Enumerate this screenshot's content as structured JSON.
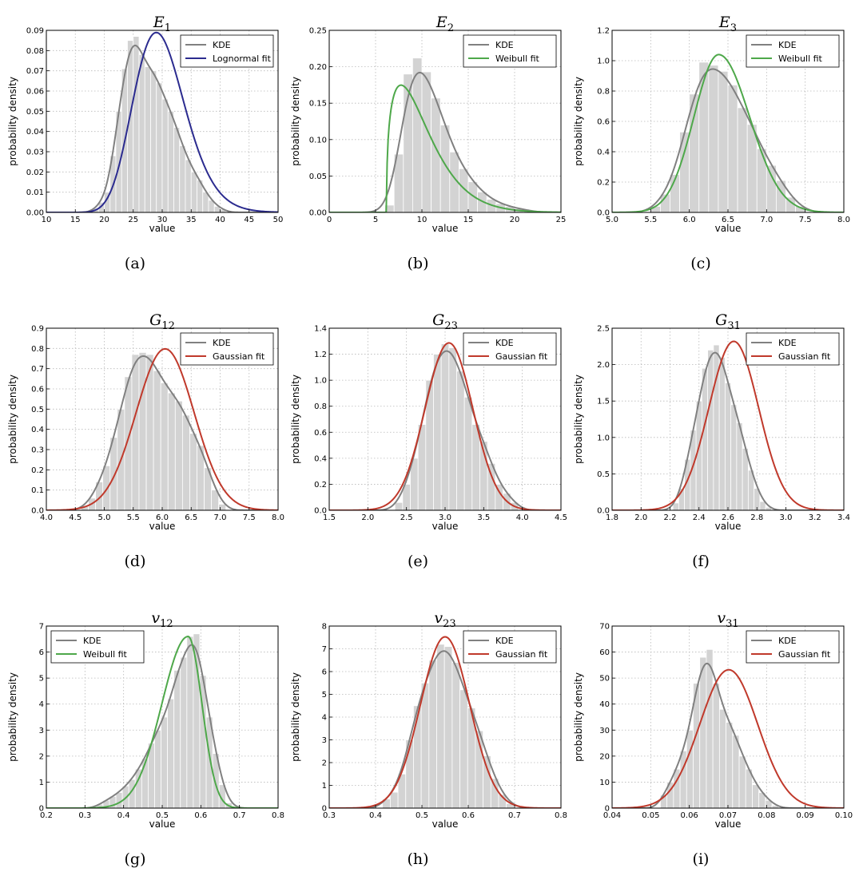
{
  "figure": {
    "colors": {
      "hist_fill": "#d3d3d3",
      "hist_edge": "#ffffff",
      "kde": "#808080",
      "lognormal": "#2b2b8f",
      "weibull": "#4ea84a",
      "gaussian": "#c0392b",
      "grid": "#b8b8b8"
    }
  },
  "chart_data": [
    {
      "id": "a",
      "caption": "(a)",
      "title_base": "E",
      "title_sub": "1",
      "type": "histogram+line",
      "xlabel": "value",
      "ylabel": "probability density",
      "xlim": [
        10,
        50
      ],
      "ylim": [
        0,
        0.09
      ],
      "xticks": [
        10,
        15,
        20,
        25,
        30,
        35,
        40,
        45,
        50
      ],
      "yticks": [
        0.0,
        0.01,
        0.02,
        0.03,
        0.04,
        0.05,
        0.06,
        0.07,
        0.08,
        0.09
      ],
      "xtick_labels": [
        "10",
        "15",
        "20",
        "25",
        "30",
        "35",
        "40",
        "45",
        "50"
      ],
      "ytick_labels": [
        "0.00",
        "0.01",
        "0.02",
        "0.03",
        "0.04",
        "0.05",
        "0.06",
        "0.07",
        "0.08",
        "0.09"
      ],
      "legend": [
        {
          "label": "KDE",
          "color": "kde"
        },
        {
          "label": "Lognormal fit",
          "color": "lognormal"
        }
      ],
      "legend_loc": "top-right",
      "hist": {
        "start": 18,
        "width": 1,
        "values": [
          0.002,
          0.005,
          0.01,
          0.028,
          0.05,
          0.071,
          0.085,
          0.087,
          0.078,
          0.072,
          0.07,
          0.064,
          0.056,
          0.05,
          0.042,
          0.033,
          0.026,
          0.02,
          0.016,
          0.01,
          0.006,
          0.003,
          0.0015
        ]
      },
      "fit": {
        "dist": "lognormal",
        "mu": 3.39,
        "sigma": 0.153
      }
    },
    {
      "id": "b",
      "caption": "(b)",
      "title_base": "E",
      "title_sub": "2",
      "type": "histogram+line",
      "xlabel": "value",
      "ylabel": "probability density",
      "xlim": [
        0,
        25
      ],
      "ylim": [
        0,
        0.25
      ],
      "xticks": [
        0,
        5,
        10,
        15,
        20,
        25
      ],
      "yticks": [
        0.0,
        0.05,
        0.1,
        0.15,
        0.2,
        0.25
      ],
      "xtick_labels": [
        "0",
        "5",
        "10",
        "15",
        "20",
        "25"
      ],
      "ytick_labels": [
        "0.00",
        "0.05",
        "0.10",
        "0.15",
        "0.20",
        "0.25"
      ],
      "legend": [
        {
          "label": "KDE",
          "color": "kde"
        },
        {
          "label": "Weibull fit",
          "color": "weibull"
        }
      ],
      "legend_loc": "top-right",
      "hist": {
        "start": 6,
        "width": 1,
        "values": [
          0.01,
          0.08,
          0.19,
          0.212,
          0.193,
          0.157,
          0.12,
          0.083,
          0.06,
          0.042,
          0.028,
          0.018,
          0.012,
          0.008,
          0.005,
          0.003
        ]
      },
      "fit": {
        "dist": "weibull_shifted",
        "loc": 6.2,
        "shape": 1.35,
        "scale": 4.2
      }
    },
    {
      "id": "c",
      "caption": "(c)",
      "title_base": "E",
      "title_sub": "3",
      "type": "histogram+line",
      "xlabel": "value",
      "ylabel": "probability density",
      "xlim": [
        5.0,
        8.0
      ],
      "ylim": [
        0,
        1.2
      ],
      "xticks": [
        5.0,
        5.5,
        6.0,
        6.5,
        7.0,
        7.5,
        8.0
      ],
      "yticks": [
        0.0,
        0.2,
        0.4,
        0.6,
        0.8,
        1.0,
        1.2
      ],
      "xtick_labels": [
        "5.0",
        "5.5",
        "6.0",
        "6.5",
        "7.0",
        "7.5",
        "8.0"
      ],
      "ytick_labels": [
        "0.0",
        "0.2",
        "0.4",
        "0.6",
        "0.8",
        "1.0",
        "1.2"
      ],
      "legend": [
        {
          "label": "KDE",
          "color": "kde"
        },
        {
          "label": "Weibull fit",
          "color": "weibull"
        }
      ],
      "legend_loc": "top-right",
      "hist": {
        "start": 5.5,
        "width": 0.125,
        "values": [
          0.04,
          0.12,
          0.25,
          0.53,
          0.78,
          0.99,
          0.97,
          0.93,
          0.84,
          0.69,
          0.58,
          0.42,
          0.31,
          0.21,
          0.1,
          0.04
        ]
      },
      "fit": {
        "dist": "weibull_neg",
        "peak": 6.38,
        "height": 1.04,
        "sigma_left": 0.32,
        "sigma_right": 0.4
      }
    },
    {
      "id": "d",
      "caption": "(d)",
      "title_base": "G",
      "title_sub": "12",
      "type": "histogram+line",
      "xlabel": "value",
      "ylabel": "probability density",
      "xlim": [
        4.0,
        8.0
      ],
      "ylim": [
        0,
        0.9
      ],
      "xticks": [
        4.0,
        4.5,
        5.0,
        5.5,
        6.0,
        6.5,
        7.0,
        7.5,
        8.0
      ],
      "yticks": [
        0.0,
        0.1,
        0.2,
        0.3,
        0.4,
        0.5,
        0.6,
        0.7,
        0.8,
        0.9
      ],
      "xtick_labels": [
        "4.0",
        "4.5",
        "5.0",
        "5.5",
        "6.0",
        "6.5",
        "7.0",
        "7.5",
        "8.0"
      ],
      "ytick_labels": [
        "0.0",
        "0.1",
        "0.2",
        "0.3",
        "0.4",
        "0.5",
        "0.6",
        "0.7",
        "0.8",
        "0.9"
      ],
      "legend": [
        {
          "label": "KDE",
          "color": "kde"
        },
        {
          "label": "Gaussian fit",
          "color": "gaussian"
        }
      ],
      "legend_loc": "top-right",
      "hist": {
        "start": 4.6,
        "width": 0.125,
        "values": [
          0.02,
          0.06,
          0.14,
          0.22,
          0.36,
          0.5,
          0.66,
          0.77,
          0.78,
          0.77,
          0.69,
          0.63,
          0.58,
          0.54,
          0.47,
          0.38,
          0.32,
          0.21,
          0.1,
          0.03
        ]
      },
      "fit": {
        "dist": "gaussian",
        "mean": 6.05,
        "std": 0.5
      }
    },
    {
      "id": "e",
      "caption": "(e)",
      "title_base": "G",
      "title_sub": "23",
      "type": "histogram+line",
      "xlabel": "value",
      "ylabel": "probability density",
      "xlim": [
        1.5,
        4.5
      ],
      "ylim": [
        0,
        1.4
      ],
      "xticks": [
        1.5,
        2.0,
        2.5,
        3.0,
        3.5,
        4.0,
        4.5
      ],
      "yticks": [
        0.0,
        0.2,
        0.4,
        0.6,
        0.8,
        1.0,
        1.2,
        1.4
      ],
      "xtick_labels": [
        "1.5",
        "2.0",
        "2.5",
        "3.0",
        "3.5",
        "4.0",
        "4.5"
      ],
      "ytick_labels": [
        "0.0",
        "0.2",
        "0.4",
        "0.6",
        "0.8",
        "1.0",
        "1.2",
        "1.4"
      ],
      "legend": [
        {
          "label": "KDE",
          "color": "kde"
        },
        {
          "label": "Gaussian fit",
          "color": "gaussian"
        }
      ],
      "legend_loc": "top-right",
      "hist": {
        "start": 2.35,
        "width": 0.1,
        "values": [
          0.06,
          0.2,
          0.4,
          0.66,
          1.0,
          1.2,
          1.28,
          1.25,
          1.07,
          0.87,
          0.66,
          0.53,
          0.36,
          0.2,
          0.13,
          0.06
        ]
      },
      "fit": {
        "dist": "gaussian",
        "mean": 3.05,
        "std": 0.31
      }
    },
    {
      "id": "f",
      "caption": "(f)",
      "title_base": "G",
      "title_sub": "31",
      "type": "histogram+line",
      "xlabel": "value",
      "ylabel": "probability density",
      "xlim": [
        1.8,
        3.4
      ],
      "ylim": [
        0,
        2.5
      ],
      "xticks": [
        1.8,
        2.0,
        2.2,
        2.4,
        2.6,
        2.8,
        3.0,
        3.2,
        3.4
      ],
      "yticks": [
        0.0,
        0.5,
        1.0,
        1.5,
        2.0,
        2.5
      ],
      "xtick_labels": [
        "1.8",
        "2.0",
        "2.2",
        "2.4",
        "2.6",
        "2.8",
        "3.0",
        "3.2",
        "3.4"
      ],
      "ytick_labels": [
        "0.0",
        "0.5",
        "1.0",
        "1.5",
        "2.0",
        "2.5"
      ],
      "legend": [
        {
          "label": "KDE",
          "color": "kde"
        },
        {
          "label": "Gaussian fit",
          "color": "gaussian"
        }
      ],
      "legend_loc": "top-right",
      "hist": {
        "start": 2.22,
        "width": 0.04,
        "values": [
          0.1,
          0.3,
          0.7,
          1.1,
          1.5,
          1.95,
          2.2,
          2.27,
          2.1,
          1.75,
          1.45,
          1.2,
          0.85,
          0.55,
          0.3,
          0.12,
          0.04
        ]
      },
      "fit": {
        "dist": "gaussian",
        "mean": 2.64,
        "std": 0.172
      }
    },
    {
      "id": "g",
      "caption": "(g)",
      "title_base": "v",
      "title_sub": "12",
      "type": "histogram+line",
      "xlabel": "value",
      "ylabel": "probability density",
      "xlim": [
        0.2,
        0.8
      ],
      "ylim": [
        0,
        7
      ],
      "xticks": [
        0.2,
        0.3,
        0.4,
        0.5,
        0.6,
        0.7,
        0.8
      ],
      "yticks": [
        0,
        1,
        2,
        3,
        4,
        5,
        6,
        7
      ],
      "xtick_labels": [
        "0.2",
        "0.3",
        "0.4",
        "0.5",
        "0.6",
        "0.7",
        "0.8"
      ],
      "ytick_labels": [
        "0",
        "1",
        "2",
        "3",
        "4",
        "5",
        "6",
        "7"
      ],
      "legend": [
        {
          "label": "KDE",
          "color": "kde"
        },
        {
          "label": "Weibull fit",
          "color": "weibull"
        }
      ],
      "legend_loc": "top-left",
      "hist": {
        "start": 0.33,
        "width": 0.0167,
        "values": [
          0.15,
          0.3,
          0.45,
          0.6,
          0.85,
          1.1,
          1.5,
          1.9,
          2.5,
          3.0,
          3.5,
          4.2,
          5.3,
          5.8,
          6.6,
          6.7,
          5.1,
          3.5,
          2.1,
          0.9,
          0.2
        ]
      },
      "fit": {
        "dist": "weibull_neg",
        "peak": 0.567,
        "height": 6.6,
        "sigma_left": 0.068,
        "sigma_right": 0.036
      }
    },
    {
      "id": "h",
      "caption": "(h)",
      "title_base": "v",
      "title_sub": "23",
      "type": "histogram+line",
      "xlabel": "value",
      "ylabel": "probability density",
      "xlim": [
        0.3,
        0.8
      ],
      "ylim": [
        0,
        8
      ],
      "xticks": [
        0.3,
        0.4,
        0.5,
        0.6,
        0.7,
        0.8
      ],
      "yticks": [
        0,
        1,
        2,
        3,
        4,
        5,
        6,
        7,
        8
      ],
      "xtick_labels": [
        "0.3",
        "0.4",
        "0.5",
        "0.6",
        "0.7",
        "0.8"
      ],
      "ytick_labels": [
        "0",
        "1",
        "2",
        "3",
        "4",
        "5",
        "6",
        "7",
        "8"
      ],
      "legend": [
        {
          "label": "KDE",
          "color": "kde"
        },
        {
          "label": "Gaussian fit",
          "color": "gaussian"
        }
      ],
      "legend_loc": "top-right",
      "hist": {
        "start": 0.415,
        "width": 0.0167,
        "values": [
          0.4,
          0.7,
          1.5,
          3.0,
          4.5,
          5.5,
          6.5,
          7.2,
          7.1,
          6.4,
          5.2,
          4.4,
          3.4,
          2.3,
          1.3,
          0.6,
          0.2
        ]
      },
      "fit": {
        "dist": "gaussian",
        "mean": 0.55,
        "std": 0.053
      }
    },
    {
      "id": "i",
      "caption": "(i)",
      "title_base": "v",
      "title_sub": "31",
      "type": "histogram+line",
      "xlabel": "value",
      "ylabel": "probability density",
      "xlim": [
        0.04,
        0.1
      ],
      "ylim": [
        0,
        70
      ],
      "xticks": [
        0.04,
        0.05,
        0.06,
        0.07,
        0.08,
        0.09,
        0.1
      ],
      "yticks": [
        0,
        10,
        20,
        30,
        40,
        50,
        60,
        70
      ],
      "xtick_labels": [
        "0.04",
        "0.05",
        "0.06",
        "0.07",
        "0.08",
        "0.09",
        "0.10"
      ],
      "ytick_labels": [
        "0",
        "10",
        "20",
        "30",
        "40",
        "50",
        "60",
        "70"
      ],
      "legend": [
        {
          "label": "KDE",
          "color": "kde"
        },
        {
          "label": "Gaussian fit",
          "color": "gaussian"
        }
      ],
      "legend_loc": "top-right",
      "hist": {
        "start": 0.0525,
        "width": 0.0017,
        "values": [
          5,
          10,
          15,
          22,
          30,
          48,
          58,
          61,
          48,
          38,
          33,
          28,
          20,
          15,
          9,
          6,
          3,
          1
        ]
      },
      "fit": {
        "dist": "gaussian",
        "mean": 0.0702,
        "std": 0.0075
      }
    }
  ]
}
